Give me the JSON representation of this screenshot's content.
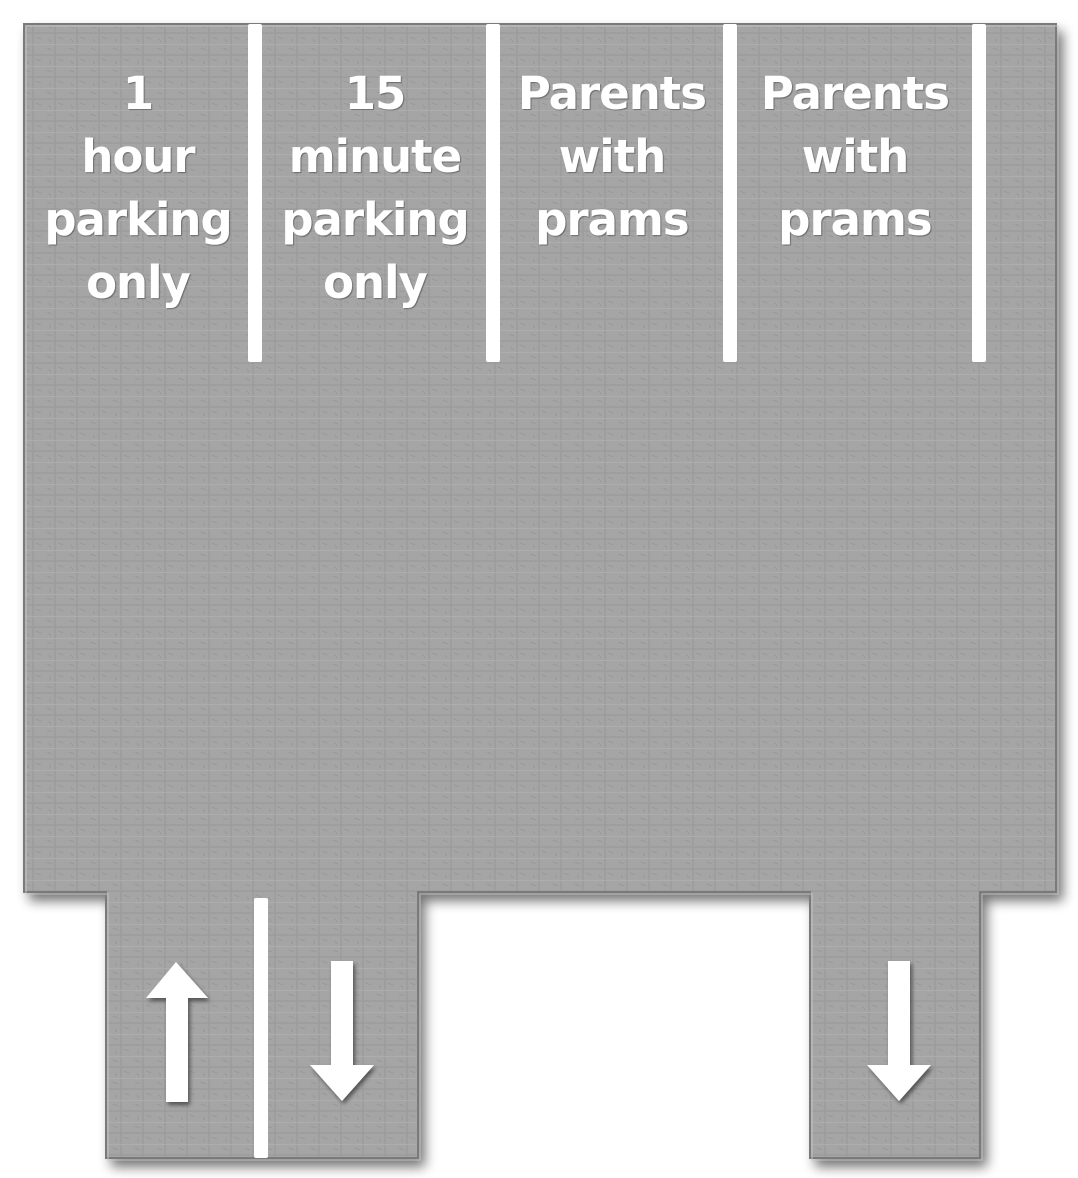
{
  "bays": [
    {
      "id": "bay-1",
      "lines": [
        "1",
        "hour",
        "parking",
        "only"
      ]
    },
    {
      "id": "bay-2",
      "lines": [
        "15",
        "minute",
        "parking",
        "only"
      ]
    },
    {
      "id": "bay-3",
      "lines": [
        "Parents",
        "with",
        "prams"
      ]
    },
    {
      "id": "bay-4",
      "lines": [
        "Parents",
        "with",
        "prams"
      ]
    }
  ],
  "lanes": [
    {
      "id": "left-lane-inbound",
      "direction": "up",
      "icon": "arrow-up-icon"
    },
    {
      "id": "left-lane-outbound",
      "direction": "down",
      "icon": "arrow-down-icon"
    },
    {
      "id": "right-lane",
      "direction": "down",
      "icon": "arrow-down-icon"
    }
  ],
  "colors": {
    "asphalt": "#a3a3a3",
    "asphalt_edge": "#6e6e6e",
    "marking": "#ffffff"
  }
}
